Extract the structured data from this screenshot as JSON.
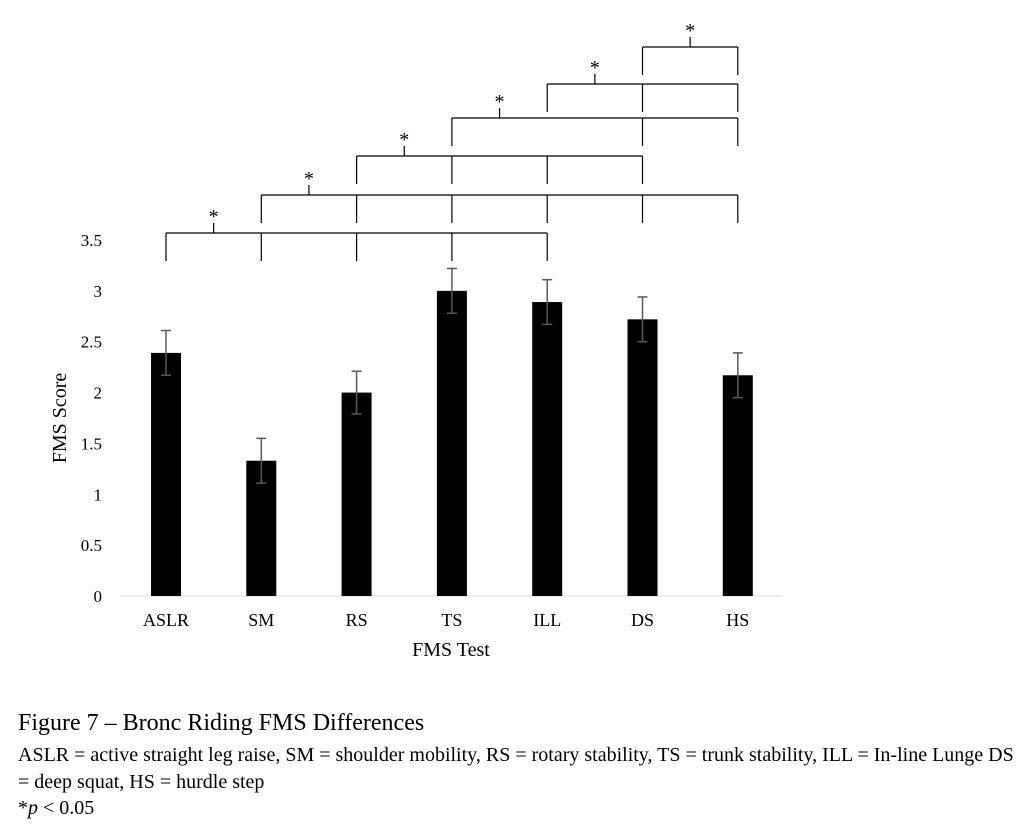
{
  "chart_data": {
    "type": "bar",
    "categories": [
      "ASLR",
      "SM",
      "RS",
      "TS",
      "ILL",
      "DS",
      "HS"
    ],
    "values": [
      2.39,
      1.33,
      2.0,
      3.0,
      2.89,
      2.72,
      2.17
    ],
    "errors": [
      0.22,
      0.22,
      0.21,
      0.22,
      0.22,
      0.22,
      0.22
    ],
    "xlabel": "FMS Test",
    "ylabel": "FMS Score",
    "ylim": [
      0,
      3.5
    ],
    "yticks": [
      "0",
      "0.5",
      "1",
      "1.5",
      "2",
      "2.5",
      "3",
      "3.5"
    ],
    "bar_color": "#000000",
    "grid": false,
    "significance_marker": "*",
    "significance_brackets": [
      {
        "from": "ASLR",
        "to": [
          "SM",
          "RS",
          "TS",
          "ILL"
        ]
      },
      {
        "from": "SM",
        "to": [
          "RS",
          "TS",
          "ILL",
          "DS",
          "HS"
        ]
      },
      {
        "from": "RS",
        "to": [
          "TS",
          "ILL",
          "DS"
        ]
      },
      {
        "from": "TS",
        "to": [
          "DS",
          "HS"
        ]
      },
      {
        "from": "ILL",
        "to": [
          "DS",
          "HS"
        ]
      },
      {
        "from": "DS",
        "to": [
          "HS"
        ]
      }
    ]
  },
  "caption": {
    "title": "Figure 7 – Bronc Riding FMS Differences",
    "abbreviations": "ASLR = active straight leg raise, SM = shoulder mobility, RS = rotary stability, TS = trunk stability, ILL = In-line Lunge DS = deep squat, HS = hurdle step",
    "note_star": "*",
    "note_p": "p",
    "note_rest": " < 0.05"
  }
}
